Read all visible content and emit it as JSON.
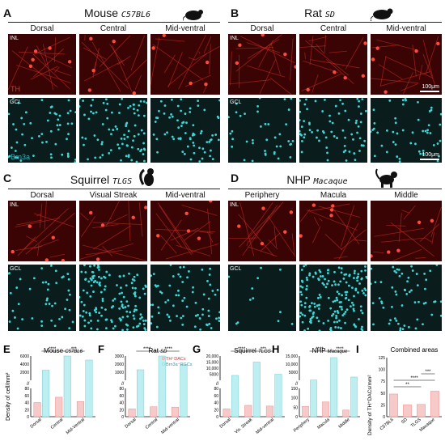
{
  "panels": {
    "A": {
      "letter": "A",
      "title": "Mouse",
      "strain": "C57BL6",
      "columns": [
        "Dorsal",
        "Central",
        "Mid-ventral"
      ],
      "inl": "INL",
      "gcl": "GCL",
      "marker_top": "TH",
      "marker_bottom": "Brn3a",
      "scale": ""
    },
    "B": {
      "letter": "B",
      "title": "Rat",
      "strain": "SD",
      "columns": [
        "Dorsal",
        "Central",
        "Mid-ventral"
      ],
      "inl": "INL",
      "gcl": "GCL",
      "scale": "100μm"
    },
    "C": {
      "letter": "C",
      "title": "Squirrel",
      "strain": "TLGS",
      "columns": [
        "Dorsal",
        "Visual Streak",
        "Mid-ventral"
      ],
      "inl": "INL",
      "gcl": "GCL"
    },
    "D": {
      "letter": "D",
      "title": "NHP",
      "strain": "Macaque",
      "columns": [
        "Periphery",
        "Macula",
        "Middle"
      ],
      "inl": "INL",
      "gcl": "GCL"
    }
  },
  "colors": {
    "th_red": "#e0332c",
    "brn3a_cyan": "#3fd6d6",
    "bar_red_fill": "#f7caca",
    "bar_cyan_fill": "#bdeff2",
    "th_label": "#e0332c",
    "brn3a_label": "#2fb5c4"
  },
  "charts": {
    "letters": [
      "E",
      "F",
      "G",
      "H",
      "I"
    ],
    "ylabel_left": "Density of cell/mm²",
    "ylabel_right": "Density of TH⁺DACs/mm²",
    "legend": [
      "TH⁺DACs",
      "Brn3a⁺RGCs"
    ],
    "I_title": "Combined areas"
  },
  "chart_data": [
    {
      "type": "bar",
      "panel": "E",
      "title": "Mouse",
      "strain": "C57BL6",
      "categories": [
        "Dorsal",
        "Central",
        "Mid-Ventral"
      ],
      "series": [
        {
          "name": "TH⁺DACs",
          "values": [
            40,
            55,
            43
          ]
        },
        {
          "name": "Brn3a⁺RGCs",
          "values": [
            2500,
            6000,
            5000
          ]
        }
      ],
      "ticks_low": [
        "0",
        "20",
        "40",
        "60",
        "80"
      ],
      "ticks_high": [
        "2000",
        "4000",
        "6000"
      ],
      "sig": [
        "****",
        "***"
      ]
    },
    {
      "type": "bar",
      "panel": "F",
      "title": "Rat",
      "strain": "SD",
      "categories": [
        "Dorsal",
        "Central",
        "Mid-ventral"
      ],
      "series": [
        {
          "name": "TH⁺DACs",
          "values": [
            22,
            28,
            27
          ]
        },
        {
          "name": "Brn3a⁺RGCs",
          "values": [
            1300,
            3000,
            1900
          ]
        }
      ],
      "ticks_low": [
        "0",
        "20",
        "40",
        "60",
        "80"
      ],
      "ticks_high": [
        "1000",
        "2000",
        "3000"
      ],
      "sig": [
        "****",
        "****"
      ]
    },
    {
      "type": "bar",
      "panel": "G",
      "title": "Squirrel",
      "strain": "TLGS",
      "categories": [
        "Dorsal",
        "Vis. Streak",
        "Mid-ventral"
      ],
      "series": [
        {
          "name": "TH⁺DACs",
          "values": [
            22,
            32,
            30
          ]
        },
        {
          "name": "Brn3a⁺RGCs",
          "values": [
            4000,
            15000,
            5000
          ]
        }
      ],
      "ticks_low": [
        "0",
        "20",
        "40",
        "60",
        "80"
      ],
      "ticks_high": [
        "5000",
        "10,000",
        "15,000",
        "20,000"
      ],
      "sig": [
        "****",
        "***"
      ]
    },
    {
      "type": "bar",
      "panel": "H",
      "title": "NHP",
      "strain": "Macaque",
      "categories": [
        "Periphery",
        "Macula",
        "Middle"
      ],
      "series": [
        {
          "name": "TH⁺DACs",
          "values": [
            55,
            78,
            35
          ]
        },
        {
          "name": "Brn3a⁺RGCs",
          "values": [
            200,
            14000,
            2000
          ]
        }
      ],
      "ticks_low": [
        "0",
        "50",
        "100",
        "150"
      ],
      "ticks_high": [
        "5000",
        "10,000",
        "15,000"
      ],
      "sig": [
        "****",
        "****"
      ]
    },
    {
      "type": "bar",
      "panel": "I",
      "title": "Combined areas",
      "categories": [
        "C57BL6",
        "SD",
        "TLGS",
        "Macaque"
      ],
      "series": [
        {
          "name": "TH⁺DACs",
          "values": [
            48,
            25,
            26,
            54
          ]
        }
      ],
      "yticks": [
        "0",
        "25",
        "50",
        "75",
        "100",
        "125"
      ],
      "ylim": [
        0,
        125
      ],
      "sig": [
        "**",
        "****",
        "***"
      ]
    }
  ]
}
